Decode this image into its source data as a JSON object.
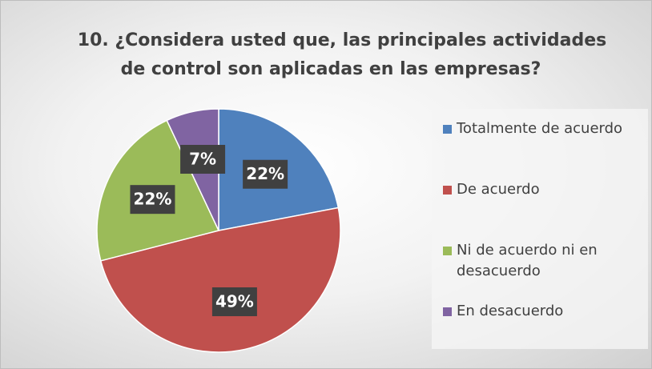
{
  "chart_data": {
    "type": "pie",
    "title": [
      "10.   ¿Considera usted que, las principales actividades",
      "de control son aplicadas en las empresas?"
    ],
    "categories": [
      "Totalmente de acuerdo",
      "De acuerdo",
      "Ni de acuerdo ni en desacuerdo",
      "En desacuerdo"
    ],
    "values": [
      22,
      49,
      22,
      7
    ],
    "value_labels": [
      "22%",
      "49%",
      "22%",
      "7%"
    ],
    "colors": [
      "#4f81bd",
      "#c0504d",
      "#9bbb59",
      "#8064a2"
    ],
    "legend": "right"
  }
}
